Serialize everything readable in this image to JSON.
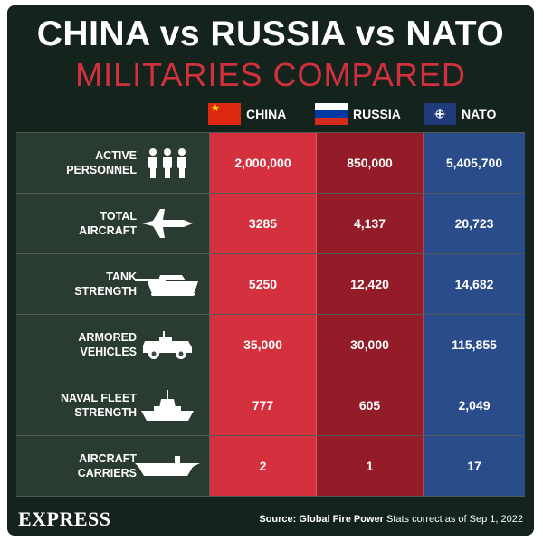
{
  "title": "CHINA vs RUSSIA vs NATO",
  "subtitle": "MILITARIES COMPARED",
  "legend": [
    {
      "key": "china",
      "label": "CHINA"
    },
    {
      "key": "russia",
      "label": "RUSSIA"
    },
    {
      "key": "nato",
      "label": "NATO"
    }
  ],
  "rows": [
    {
      "label_line1": "ACTIVE",
      "label_line2": "PERSONNEL",
      "icon": "personnel-icon",
      "china": "2,000,000",
      "russia": "850,000",
      "nato": "5,405,700"
    },
    {
      "label_line1": "TOTAL",
      "label_line2": "AIRCRAFT",
      "icon": "fighter-jet-icon",
      "china": "3285",
      "russia": "4,137",
      "nato": "20,723"
    },
    {
      "label_line1": "TANK",
      "label_line2": "STRENGTH",
      "icon": "tank-icon",
      "china": "5250",
      "russia": "12,420",
      "nato": "14,682"
    },
    {
      "label_line1": "ARMORED",
      "label_line2": "VEHICLES",
      "icon": "armored-vehicle-icon",
      "china": "35,000",
      "russia": "30,000",
      "nato": "115,855"
    },
    {
      "label_line1": "NAVAL FLEET",
      "label_line2": "STRENGTH",
      "icon": "warship-icon",
      "china": "777",
      "russia": "605",
      "nato": "2,049"
    },
    {
      "label_line1": "AIRCRAFT",
      "label_line2": "CARRIERS",
      "icon": "aircraft-carrier-icon",
      "china": "2",
      "russia": "1",
      "nato": "17"
    }
  ],
  "footer": {
    "logo": "EXPRESS",
    "source_label": "Source: Global Fire Power",
    "source_note": " Stats correct as of Sep 1, 2022"
  },
  "colors": {
    "background": "#14231c",
    "china": "#d4303e",
    "russia": "#931c28",
    "nato": "#2a4c8a",
    "subtitle": "#d0313d"
  }
}
